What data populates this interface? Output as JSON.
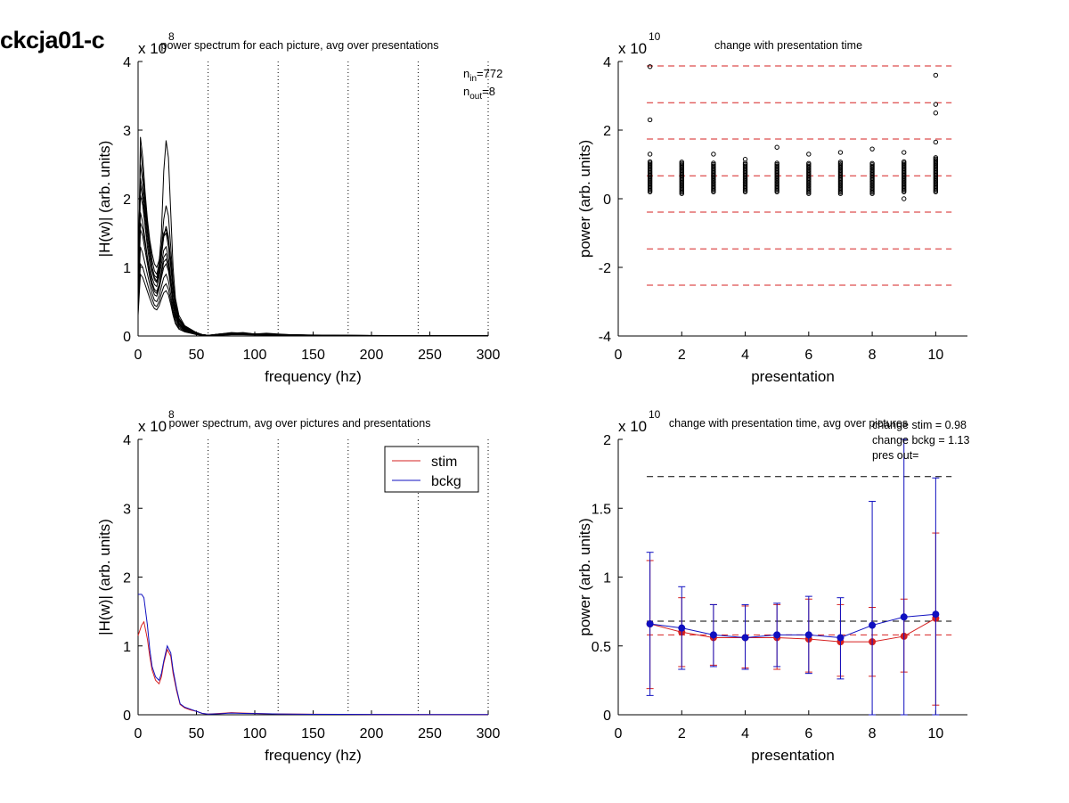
{
  "figure_title": "ckcja01-c",
  "colors": {
    "stim": "#d62020",
    "bckg": "#1010c0",
    "trace": "#000000",
    "refline": "#d62020"
  },
  "chart_data": [
    {
      "id": "spectrum_each",
      "type": "line",
      "title": "power spectrum for each picture, avg over presentations",
      "xlabel": "frequency (hz)",
      "ylabel": "|H(w)| (arb. units)",
      "exponent": "8",
      "exponent_prefix": "x 10",
      "xlim": [
        0,
        300
      ],
      "ylim": [
        0,
        4
      ],
      "xticks": [
        0,
        50,
        100,
        150,
        200,
        250,
        300
      ],
      "yticks": [
        0,
        1,
        2,
        3,
        4
      ],
      "vlines": [
        60,
        120,
        180,
        240,
        300
      ],
      "annotation": {
        "n_in": "772",
        "n_out": "8"
      },
      "x": [
        0,
        2,
        4,
        6,
        8,
        10,
        12,
        14,
        16,
        18,
        20,
        22,
        24,
        26,
        28,
        30,
        32,
        35,
        40,
        45,
        50,
        55,
        60,
        70,
        80,
        90,
        100,
        110,
        120,
        130,
        150,
        175,
        200,
        250,
        300
      ],
      "series": [
        {
          "values": [
            0.55,
            2.75,
            2.4,
            2.0,
            1.65,
            1.35,
            1.1,
            0.95,
            0.9,
            1.05,
            1.5,
            2.4,
            2.85,
            2.6,
            1.8,
            1.0,
            0.55,
            0.3,
            0.15,
            0.1,
            0.05,
            0.02,
            0.01,
            0.03,
            0.05,
            0.04,
            0.03,
            0.04,
            0.03,
            0.02,
            0.015,
            0.01,
            0.008,
            0.005,
            0.004
          ]
        },
        {
          "values": [
            0.4,
            2.9,
            2.6,
            2.1,
            1.7,
            1.4,
            1.2,
            1.05,
            1.0,
            1.1,
            1.3,
            1.5,
            1.55,
            1.4,
            1.1,
            0.7,
            0.45,
            0.25,
            0.12,
            0.08,
            0.04,
            0.02,
            0.01,
            0.02,
            0.04,
            0.05,
            0.03,
            0.03,
            0.02,
            0.02,
            0.01,
            0.01,
            0.007,
            0.005,
            0.004
          ]
        },
        {
          "values": [
            0.7,
            2.3,
            2.1,
            1.8,
            1.5,
            1.25,
            1.0,
            0.85,
            0.8,
            0.95,
            1.2,
            1.45,
            1.5,
            1.3,
            1.0,
            0.65,
            0.4,
            0.22,
            0.13,
            0.09,
            0.05,
            0.02,
            0.01,
            0.03,
            0.04,
            0.04,
            0.03,
            0.03,
            0.02,
            0.02,
            0.01,
            0.008,
            0.006,
            0.005,
            0.003
          ]
        },
        {
          "values": [
            0.6,
            2.05,
            1.9,
            1.6,
            1.3,
            1.05,
            0.85,
            0.75,
            0.72,
            0.85,
            1.05,
            1.25,
            1.3,
            1.15,
            0.85,
            0.55,
            0.35,
            0.2,
            0.11,
            0.07,
            0.04,
            0.02,
            0.01,
            0.02,
            0.03,
            0.03,
            0.03,
            0.02,
            0.02,
            0.015,
            0.01,
            0.008,
            0.006,
            0.004,
            0.003
          ]
        },
        {
          "values": [
            0.8,
            1.8,
            1.65,
            1.4,
            1.15,
            0.95,
            0.78,
            0.68,
            0.65,
            0.75,
            0.95,
            1.15,
            1.2,
            1.05,
            0.8,
            0.5,
            0.32,
            0.18,
            0.1,
            0.07,
            0.04,
            0.02,
            0.01,
            0.02,
            0.03,
            0.03,
            0.02,
            0.02,
            0.02,
            0.015,
            0.01,
            0.007,
            0.005,
            0.004,
            0.003
          ]
        },
        {
          "values": [
            0.5,
            1.55,
            1.45,
            1.25,
            1.05,
            0.85,
            0.7,
            0.6,
            0.58,
            0.68,
            0.85,
            1.0,
            1.05,
            0.95,
            0.72,
            0.45,
            0.28,
            0.16,
            0.09,
            0.06,
            0.03,
            0.015,
            0.01,
            0.02,
            0.03,
            0.03,
            0.02,
            0.02,
            0.015,
            0.012,
            0.01,
            0.007,
            0.005,
            0.004,
            0.003
          ]
        },
        {
          "values": [
            0.45,
            1.3,
            1.2,
            1.05,
            0.9,
            0.75,
            0.62,
            0.52,
            0.5,
            0.58,
            0.72,
            0.85,
            0.9,
            0.8,
            0.6,
            0.38,
            0.24,
            0.14,
            0.08,
            0.05,
            0.03,
            0.015,
            0.01,
            0.02,
            0.025,
            0.025,
            0.02,
            0.02,
            0.015,
            0.01,
            0.008,
            0.006,
            0.005,
            0.004,
            0.003
          ]
        },
        {
          "values": [
            0.35,
            1.05,
            1.0,
            0.88,
            0.76,
            0.64,
            0.54,
            0.45,
            0.43,
            0.5,
            0.62,
            0.72,
            0.76,
            0.68,
            0.52,
            0.33,
            0.2,
            0.12,
            0.07,
            0.045,
            0.025,
            0.012,
            0.008,
            0.015,
            0.02,
            0.02,
            0.018,
            0.015,
            0.012,
            0.01,
            0.008,
            0.006,
            0.004,
            0.003,
            0.002
          ]
        },
        {
          "values": [
            1.0,
            2.5,
            2.25,
            1.9,
            1.55,
            1.25,
            1.0,
            0.88,
            0.85,
            1.0,
            1.3,
            1.7,
            1.9,
            1.75,
            1.3,
            0.8,
            0.48,
            0.26,
            0.14,
            0.09,
            0.05,
            0.02,
            0.01,
            0.03,
            0.045,
            0.04,
            0.03,
            0.03,
            0.025,
            0.02,
            0.012,
            0.009,
            0.007,
            0.005,
            0.004
          ]
        },
        {
          "values": [
            0.3,
            0.9,
            0.85,
            0.75,
            0.65,
            0.55,
            0.46,
            0.4,
            0.38,
            0.44,
            0.54,
            0.63,
            0.66,
            0.6,
            0.46,
            0.3,
            0.18,
            0.1,
            0.06,
            0.04,
            0.02,
            0.01,
            0.007,
            0.012,
            0.018,
            0.018,
            0.015,
            0.013,
            0.011,
            0.009,
            0.007,
            0.005,
            0.004,
            0.003,
            0.002
          ]
        },
        {
          "values": [
            0.9,
            2.2,
            2.0,
            1.7,
            1.4,
            1.15,
            0.95,
            0.82,
            0.78,
            0.9,
            1.15,
            1.45,
            1.6,
            1.45,
            1.1,
            0.7,
            0.42,
            0.23,
            0.12,
            0.08,
            0.045,
            0.02,
            0.01,
            0.025,
            0.04,
            0.035,
            0.03,
            0.025,
            0.02,
            0.018,
            0.012,
            0.008,
            0.006,
            0.005,
            0.003
          ]
        },
        {
          "values": [
            0.65,
            1.65,
            1.55,
            1.35,
            1.12,
            0.92,
            0.76,
            0.65,
            0.62,
            0.72,
            0.9,
            1.08,
            1.12,
            1.0,
            0.76,
            0.48,
            0.3,
            0.17,
            0.09,
            0.06,
            0.035,
            0.015,
            0.01,
            0.02,
            0.03,
            0.03,
            0.022,
            0.02,
            0.017,
            0.013,
            0.01,
            0.007,
            0.005,
            0.004,
            0.003
          ]
        }
      ]
    },
    {
      "id": "power_each",
      "type": "scatter",
      "title": "change with presentation time",
      "xlabel": "presentation",
      "ylabel": "power (arb. units)",
      "exponent": "10",
      "exponent_prefix": "x 10",
      "xlim": [
        0,
        11
      ],
      "ylim": [
        -4,
        4
      ],
      "xticks": [
        0,
        2,
        4,
        6,
        8,
        10
      ],
      "yticks": [
        -4,
        -2,
        0,
        2,
        4
      ],
      "hlines": [
        3.87,
        2.8,
        1.74,
        0.67,
        -0.39,
        -1.46,
        -2.52
      ],
      "columns": [
        {
          "x": 1,
          "low": 0.2,
          "high": 1.1,
          "outliers": [
            1.3,
            2.3,
            3.85
          ]
        },
        {
          "x": 2,
          "low": 0.15,
          "high": 1.1,
          "outliers": []
        },
        {
          "x": 3,
          "low": 0.2,
          "high": 1.05,
          "outliers": [
            1.3
          ]
        },
        {
          "x": 4,
          "low": 0.2,
          "high": 1.05,
          "outliers": [
            1.15
          ]
        },
        {
          "x": 5,
          "low": 0.2,
          "high": 1.05,
          "outliers": [
            1.5
          ]
        },
        {
          "x": 6,
          "low": 0.15,
          "high": 1.05,
          "outliers": [
            1.3
          ]
        },
        {
          "x": 7,
          "low": 0.15,
          "high": 1.1,
          "outliers": [
            1.35
          ]
        },
        {
          "x": 8,
          "low": 0.15,
          "high": 1.05,
          "outliers": [
            1.45
          ]
        },
        {
          "x": 9,
          "low": 0.2,
          "high": 1.1,
          "outliers": [
            0.0,
            1.35
          ]
        },
        {
          "x": 10,
          "low": 0.2,
          "high": 1.2,
          "outliers": [
            1.65,
            2.5,
            2.75,
            3.6
          ]
        }
      ]
    },
    {
      "id": "spectrum_avg",
      "type": "line",
      "title": "power spectrum, avg over pictures and presentations",
      "xlabel": "frequency (hz)",
      "ylabel": "|H(w)| (arb. units)",
      "exponent": "8",
      "exponent_prefix": "x 10",
      "xlim": [
        0,
        300
      ],
      "ylim": [
        0,
        4
      ],
      "xticks": [
        0,
        50,
        100,
        150,
        200,
        250,
        300
      ],
      "yticks": [
        0,
        1,
        2,
        3,
        4
      ],
      "vlines": [
        60,
        120,
        180,
        240,
        300
      ],
      "legend_position": "top-right",
      "x": [
        0,
        3,
        5,
        8,
        10,
        12,
        15,
        18,
        20,
        22,
        25,
        28,
        30,
        33,
        36,
        40,
        45,
        50,
        55,
        60,
        70,
        80,
        90,
        100,
        110,
        120,
        150,
        200,
        250,
        300
      ],
      "series": [
        {
          "name": "stim",
          "values": [
            1.15,
            1.3,
            1.35,
            1.1,
            0.85,
            0.65,
            0.5,
            0.45,
            0.55,
            0.75,
            0.95,
            0.85,
            0.6,
            0.35,
            0.15,
            0.1,
            0.07,
            0.05,
            0.02,
            0.01,
            0.02,
            0.03,
            0.025,
            0.02,
            0.015,
            0.012,
            0.008,
            0.005,
            0.004,
            0.003
          ]
        },
        {
          "name": "bckg",
          "values": [
            1.75,
            1.75,
            1.7,
            1.3,
            0.95,
            0.7,
            0.55,
            0.5,
            0.6,
            0.78,
            1.0,
            0.9,
            0.65,
            0.38,
            0.16,
            0.11,
            0.08,
            0.05,
            0.02,
            0.01,
            0.015,
            0.025,
            0.02,
            0.018,
            0.014,
            0.011,
            0.007,
            0.005,
            0.004,
            0.003
          ]
        }
      ]
    },
    {
      "id": "power_avg",
      "type": "line",
      "title": "change with presentation time, avg over pictures",
      "xlabel": "presentation",
      "ylabel": "power (arb. units)",
      "exponent": "10",
      "exponent_prefix": "x 10",
      "xlim": [
        0,
        11
      ],
      "ylim": [
        0,
        2
      ],
      "xticks": [
        0,
        2,
        4,
        6,
        8,
        10
      ],
      "yticks": [
        0,
        0.5,
        1,
        1.5,
        2
      ],
      "ytick_labels": [
        "0",
        "0.5",
        "1",
        "1.5",
        "2"
      ],
      "annotation_lines": [
        "change stim = 0.98",
        "change bckg = 1.13",
        "pres out="
      ],
      "hlines": [
        {
          "y": 1.73,
          "color": "black"
        },
        {
          "y": 0.68,
          "color": "black"
        },
        {
          "y": 0.58,
          "color": "stim"
        }
      ],
      "x": [
        1,
        2,
        3,
        4,
        5,
        6,
        7,
        8,
        9,
        10
      ],
      "series": [
        {
          "name": "stim",
          "values": [
            0.66,
            0.6,
            0.56,
            0.56,
            0.56,
            0.55,
            0.53,
            0.53,
            0.57,
            0.7
          ],
          "err_low": [
            0.19,
            0.35,
            0.36,
            0.34,
            0.33,
            0.31,
            0.28,
            0.28,
            0.31,
            0.07
          ],
          "err_high": [
            1.12,
            0.85,
            0.8,
            0.79,
            0.8,
            0.84,
            0.8,
            0.78,
            0.84,
            1.32
          ]
        },
        {
          "name": "bckg",
          "values": [
            0.66,
            0.63,
            0.58,
            0.56,
            0.58,
            0.58,
            0.56,
            0.65,
            0.71,
            0.73
          ],
          "err_low": [
            0.14,
            0.33,
            0.35,
            0.33,
            0.35,
            0.3,
            0.26,
            0.0,
            0.0,
            0.0
          ],
          "err_high": [
            1.18,
            0.93,
            0.8,
            0.8,
            0.81,
            0.86,
            0.85,
            1.55,
            2.0,
            1.72
          ]
        }
      ]
    }
  ]
}
